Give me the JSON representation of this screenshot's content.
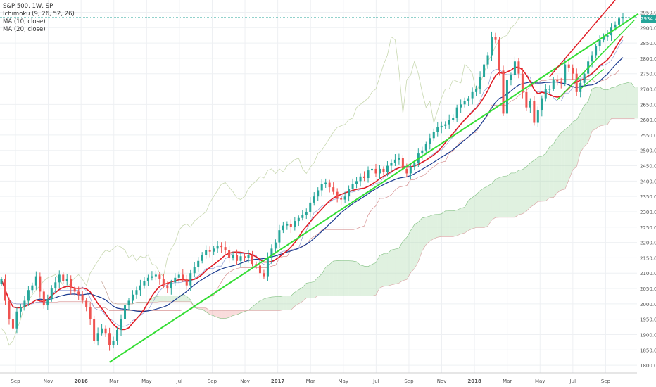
{
  "legend": {
    "title": "S&P 500, 1W, SP",
    "ichimoku": "Ichimoku (9, 26, 52, 26)",
    "ma10": "MA (10, close)",
    "ma20": "MA (20, close)"
  },
  "last_price_label": "2934.43",
  "colors": {
    "up": "#26a69a",
    "down": "#ef5350",
    "ma10": "#e01b24",
    "ma20": "#1a3a8f",
    "trendline": "#33dd33",
    "channel": "#e01b24",
    "cloud_bull": "#a5d6a7",
    "cloud_bear": "#ef9a9a",
    "lagging": "#c8d8b0",
    "price_label_bg": "#26a69a"
  },
  "chart_data": {
    "type": "candlestick",
    "y_axis": {
      "ticks": [
        1800,
        1850,
        1900,
        1950,
        2000,
        2050,
        2100,
        2150,
        2200,
        2250,
        2300,
        2350,
        2400,
        2450,
        2500,
        2550,
        2600,
        2650,
        2700,
        2750,
        2800,
        2850,
        2900,
        2950
      ],
      "range": [
        1775,
        2990
      ]
    },
    "x_axis": {
      "ticks": [
        "Sep",
        "Nov",
        "2016",
        "Mar",
        "May",
        "Jul",
        "Sep",
        "Nov",
        "2017",
        "Mar",
        "May",
        "Jul",
        "Sep",
        "Nov",
        "2018",
        "Mar",
        "May",
        "Jul",
        "Sep"
      ],
      "bold_ticks": [
        "2016",
        "2017",
        "2018"
      ]
    },
    "closes": [
      2080,
      2010,
      1950,
      1920,
      1975,
      1990,
      2010,
      2045,
      2060,
      2090,
      2040,
      1995,
      2015,
      2050,
      2070,
      2095,
      2075,
      2080,
      2050,
      2040,
      2030,
      2010,
      1990,
      1950,
      1880,
      1905,
      1920,
      1905,
      1865,
      1880,
      1915,
      1950,
      1995,
      2010,
      2030,
      2045,
      2060,
      2075,
      2085,
      2090,
      2095,
      2080,
      2060,
      2050,
      2070,
      2085,
      2095,
      2080,
      2060,
      2100,
      2120,
      2140,
      2160,
      2175,
      2170,
      2180,
      2190,
      2185,
      2175,
      2150,
      2160,
      2140,
      2155,
      2150,
      2160,
      2130,
      2125,
      2100,
      2090,
      2150,
      2180,
      2200,
      2240,
      2255,
      2260,
      2250,
      2270,
      2280,
      2290,
      2300,
      2330,
      2350,
      2370,
      2390,
      2395,
      2380,
      2365,
      2345,
      2340,
      2350,
      2375,
      2390,
      2400,
      2415,
      2410,
      2435,
      2440,
      2425,
      2440,
      2430,
      2450,
      2460,
      2470,
      2475,
      2440,
      2425,
      2445,
      2460,
      2490,
      2500,
      2520,
      2540,
      2560,
      2575,
      2580,
      2585,
      2600,
      2605,
      2640,
      2650,
      2660,
      2670,
      2690,
      2700,
      2740,
      2780,
      2810,
      2870,
      2860,
      2760,
      2620,
      2730,
      2745,
      2790,
      2750,
      2690,
      2640,
      2660,
      2590,
      2630,
      2670,
      2700,
      2700,
      2730,
      2725,
      2720,
      2780,
      2770,
      2750,
      2690,
      2720,
      2750,
      2790,
      2810,
      2840,
      2860,
      2870,
      2875,
      2900,
      2910,
      2930,
      2934.43
    ],
    "overlays": [
      "MA (10, close)",
      "MA (20, close)",
      "Ichimoku (9, 26, 52, 26)",
      "trendlines"
    ]
  }
}
